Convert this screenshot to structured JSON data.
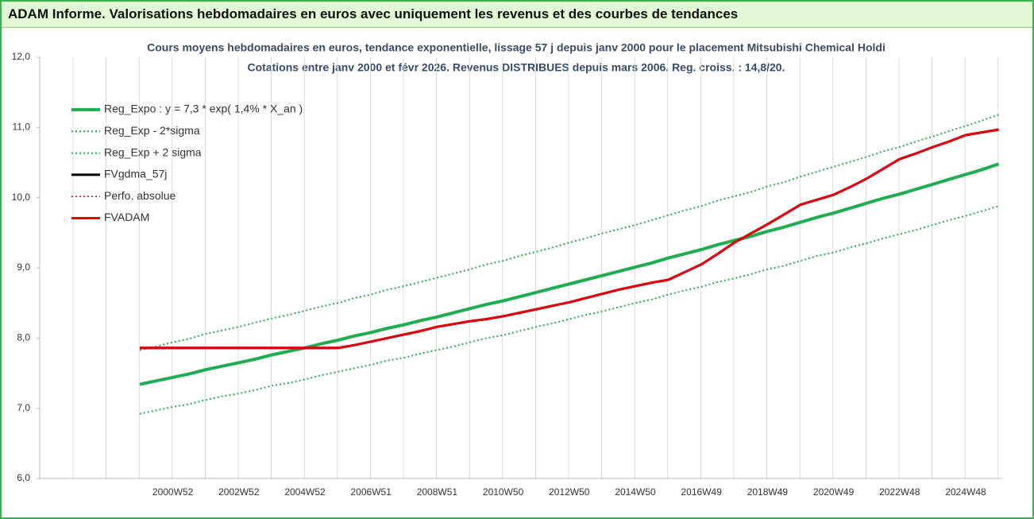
{
  "header": {
    "title": "ADAM Informe. Valorisations hebdomadaires en euros avec uniquement les revenus et des courbes de tendances"
  },
  "chart_data": {
    "type": "line",
    "title": "Cours moyens hebdomadaires en euros, tendance exponentielle, lissage 57 j depuis janv 2000  pour le placement Mitsubishi Chemical Holdi",
    "subtitle": "Cotations entre janv 2000 et févr 2026. Revenus DISTRIBUES depuis mars 2006. Reg. croiss. : 14,8/20.",
    "categories": [
      null,
      null,
      "2000W52",
      null,
      null,
      null,
      "2002W52",
      null,
      null,
      null,
      "2004W52",
      null,
      null,
      null,
      "2006W51",
      null,
      null,
      null,
      "2008W51",
      null,
      null,
      null,
      "2010W50",
      null,
      null,
      null,
      "2012W50",
      null,
      null,
      null,
      "2014W50",
      null,
      null,
      null,
      "2016W49",
      null,
      null,
      null,
      "2018W49",
      null,
      null,
      null,
      "2020W49",
      null,
      null,
      null,
      "2022W48",
      null,
      null,
      null,
      "2024W48",
      null,
      null
    ],
    "ylim": [
      6,
      12
    ],
    "yticks": [
      {
        "value": 6,
        "label": "6,0"
      },
      {
        "value": 7,
        "label": "7,0"
      },
      {
        "value": 8,
        "label": "8,0"
      },
      {
        "value": 9,
        "label": "9,0"
      },
      {
        "value": 10,
        "label": "10,0"
      },
      {
        "value": 11,
        "label": "11,0"
      },
      {
        "value": 12,
        "label": "12,0"
      }
    ],
    "legend": "upper left",
    "series": [
      {
        "name": "Reg_Expo : y = 7,3 * exp( 1,4% *  X_an )",
        "color": "#1fae4f",
        "style": "solid",
        "width": 4,
        "values": [
          7.34,
          7.39,
          7.44,
          7.49,
          7.55,
          7.6,
          7.65,
          7.7,
          7.76,
          7.81,
          7.86,
          7.92,
          7.97,
          8.03,
          8.08,
          8.14,
          8.19,
          8.25,
          8.3,
          8.36,
          8.42,
          8.48,
          8.53,
          8.59,
          8.65,
          8.71,
          8.77,
          8.83,
          8.89,
          8.95,
          9.01,
          9.07,
          9.14,
          9.2,
          9.26,
          9.33,
          9.39,
          9.45,
          9.52,
          9.58,
          9.65,
          9.72,
          9.78,
          9.85,
          9.92,
          9.99,
          10.05,
          10.12,
          10.19,
          10.26,
          10.33,
          10.4,
          10.48
        ]
      },
      {
        "name": "Reg_Exp - 2*sigma",
        "color": "#1fae4f",
        "style": "dotted",
        "width": 2,
        "values": [
          6.92,
          6.97,
          7.02,
          7.06,
          7.12,
          7.17,
          7.21,
          7.26,
          7.32,
          7.36,
          7.41,
          7.47,
          7.52,
          7.57,
          7.62,
          7.68,
          7.72,
          7.78,
          7.83,
          7.88,
          7.94,
          8.0,
          8.04,
          8.1,
          8.16,
          8.21,
          8.27,
          8.33,
          8.38,
          8.44,
          8.5,
          8.55,
          8.62,
          8.68,
          8.73,
          8.8,
          8.85,
          8.91,
          8.98,
          9.03,
          9.1,
          9.17,
          9.22,
          9.29,
          9.35,
          9.42,
          9.48,
          9.54,
          9.61,
          9.68,
          9.74,
          9.81,
          9.88
        ]
      },
      {
        "name": "Reg_Exp + 2 sigma",
        "color": "#1fae4f",
        "style": "dotted",
        "width": 2,
        "values": [
          7.83,
          7.88,
          7.94,
          7.99,
          8.06,
          8.11,
          8.16,
          8.22,
          8.28,
          8.33,
          8.39,
          8.45,
          8.5,
          8.57,
          8.62,
          8.69,
          8.74,
          8.8,
          8.86,
          8.92,
          8.98,
          9.05,
          9.1,
          9.17,
          9.23,
          9.29,
          9.36,
          9.42,
          9.49,
          9.55,
          9.61,
          9.68,
          9.75,
          9.82,
          9.88,
          9.96,
          10.02,
          10.08,
          10.16,
          10.22,
          10.3,
          10.37,
          10.44,
          10.51,
          10.58,
          10.66,
          10.72,
          10.8,
          10.87,
          10.95,
          11.02,
          11.1,
          11.18
        ]
      },
      {
        "name": "FVgdma_57j",
        "color": "#000000",
        "style": "solid",
        "width": 3,
        "values": [
          7.86,
          7.86,
          7.86,
          7.86,
          7.86,
          7.86,
          7.86,
          7.86,
          7.86,
          7.86,
          7.86,
          7.86,
          7.86,
          7.9,
          7.95,
          8.0,
          8.05,
          8.1,
          8.16,
          8.2,
          8.24,
          8.27,
          8.31,
          8.36,
          8.41,
          8.46,
          8.51,
          8.57,
          8.63,
          8.69,
          8.74,
          8.79,
          8.83,
          8.94,
          9.05,
          9.2,
          9.36,
          9.49,
          9.62,
          9.76,
          9.9,
          9.97,
          10.04,
          10.15,
          10.27,
          10.41,
          10.55,
          10.63,
          10.72,
          10.8,
          10.89,
          10.93,
          10.97
        ]
      },
      {
        "name": "Perfo. absolue",
        "color": "#e8000b",
        "style": "dotted",
        "width": 1.5,
        "values": [
          7.86,
          7.86,
          7.86,
          7.86,
          7.86,
          7.86,
          7.86,
          7.86,
          7.86,
          7.86,
          7.86,
          7.86,
          7.86,
          7.9,
          7.95,
          8.0,
          8.05,
          8.1,
          8.16,
          8.2,
          8.24,
          8.27,
          8.31,
          8.36,
          8.41,
          8.46,
          8.51,
          8.57,
          8.63,
          8.69,
          8.74,
          8.79,
          8.83,
          8.94,
          9.05,
          9.2,
          9.36,
          9.49,
          9.62,
          9.76,
          9.9,
          9.97,
          10.04,
          10.15,
          10.27,
          10.41,
          10.55,
          10.63,
          10.72,
          10.8,
          10.89,
          10.93,
          10.97
        ]
      },
      {
        "name": "FVADAM",
        "color": "#e8000b",
        "style": "solid",
        "width": 3,
        "values": [
          7.86,
          7.86,
          7.86,
          7.86,
          7.86,
          7.86,
          7.86,
          7.86,
          7.86,
          7.86,
          7.86,
          7.86,
          7.86,
          7.9,
          7.95,
          8.0,
          8.05,
          8.1,
          8.16,
          8.2,
          8.24,
          8.27,
          8.31,
          8.36,
          8.41,
          8.46,
          8.51,
          8.57,
          8.63,
          8.69,
          8.74,
          8.79,
          8.83,
          8.94,
          9.05,
          9.2,
          9.36,
          9.49,
          9.62,
          9.76,
          9.9,
          9.97,
          10.04,
          10.15,
          10.27,
          10.41,
          10.55,
          10.63,
          10.72,
          10.8,
          10.89,
          10.93,
          10.97
        ]
      }
    ]
  }
}
